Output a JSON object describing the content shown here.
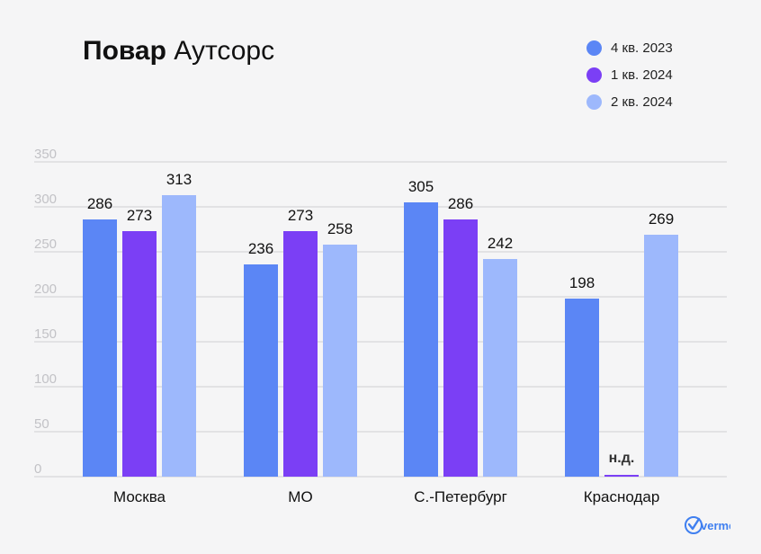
{
  "title": {
    "bold": "Повар",
    "regular": "Аутсорс"
  },
  "logo_text": "verme",
  "chart_data": {
    "type": "bar",
    "title": "Повар Аутсорс",
    "categories": [
      "Москва",
      "МО",
      "С.-Петербург",
      "Краснодар"
    ],
    "series": [
      {
        "name": "4 кв. 2023",
        "color": "#5b86f5",
        "values": [
          286,
          236,
          305,
          198
        ]
      },
      {
        "name": "1 кв. 2024",
        "color": "#7b3ff5",
        "values": [
          273,
          273,
          286,
          null
        ]
      },
      {
        "name": "2 кв. 2024",
        "color": "#9db8fc",
        "values": [
          313,
          258,
          242,
          269
        ]
      }
    ],
    "missing_label": "н.д.",
    "yticks": [
      0,
      50,
      100,
      150,
      200,
      250,
      300,
      350
    ],
    "ylim": [
      0,
      350
    ],
    "grid": true,
    "legend_position": "top-right",
    "xlabel": "",
    "ylabel": ""
  }
}
